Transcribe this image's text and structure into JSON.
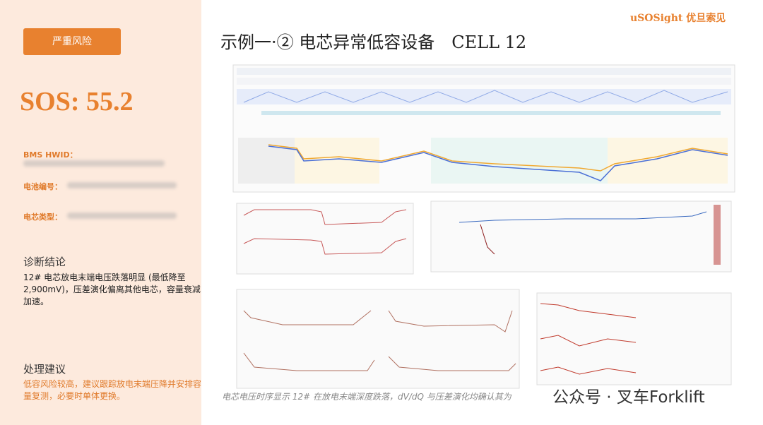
{
  "badge": "严重风险",
  "score": "SOS: 55.2",
  "fields": [
    {
      "label": "BMS HWID："
    },
    {
      "label": "电池编号："
    },
    {
      "label": "电芯类型："
    }
  ],
  "diagnosis": {
    "heading": "诊断结论",
    "text": "12# 电芯放电末端电压跌落明显 (最低降至 2,900mV)，压差演化偏离其他电芯，容量衰减加速。"
  },
  "advice": {
    "heading": "处理建议",
    "text": "低容风险较高，建议跟踪放电末端压降并安排容量复测，必要时单体更换。"
  },
  "title": "示例一·② 电芯异常低容设备　CELL 12",
  "logo": {
    "en": "uSOSight",
    "cn": "优旦索见"
  },
  "caption": "电芯电压时序显示 12# 在放电末端深度跌落，dV/dQ 与压差演化均确认其为",
  "watermark": "公众号 · 叉车Forklift"
}
